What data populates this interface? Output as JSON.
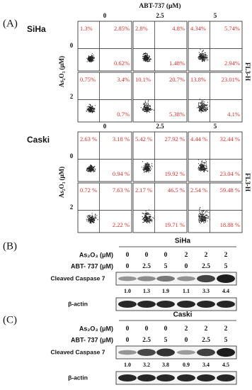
{
  "panel_a": {
    "label": "(A)",
    "header": "ABT-737 (μM)",
    "y_label": "As₂O₃ (μM)",
    "side_label": "FL3-H",
    "blocks": [
      {
        "name": "SiHa",
        "columns": [
          "0",
          "2.5",
          "5"
        ],
        "rows": [
          {
            "label": "0",
            "cells": [
              [
                "1.3%",
                "2.85%",
                "0.62%"
              ],
              [
                "2.8%",
                "4.8%",
                "1.48%"
              ],
              [
                "4.34%",
                "5.74%",
                "2.94%"
              ]
            ]
          },
          {
            "label": "2",
            "cells": [
              [
                "0.75%",
                "3.4%",
                "0.7%"
              ],
              [
                "10.1%",
                "20.7%",
                "5.38%"
              ],
              [
                "13.8%",
                "23.01%",
                "4.1%"
              ]
            ]
          }
        ]
      },
      {
        "name": "Caski",
        "columns": [
          "0",
          "2.5",
          "5"
        ],
        "rows": [
          {
            "label": "0",
            "cells": [
              [
                "2.63 %",
                "3.18 %",
                "0.94 %"
              ],
              [
                "5.42 %",
                "27.92 %",
                "19.92 %"
              ],
              [
                "4.44 %",
                "32.44 %",
                "23.04 %"
              ]
            ]
          },
          {
            "label": "2",
            "cells": [
              [
                "0.72 %",
                "7.63 %",
                "2.22 %"
              ],
              [
                "2.17 %",
                "46.5 %",
                "19.71 %"
              ],
              [
                "2.54 %",
                "59.48 %",
                "18.88 %"
              ]
            ]
          }
        ]
      }
    ]
  },
  "blots": [
    {
      "label": "(B)",
      "cell_line": "SiHa",
      "treatments": [
        {
          "label": "As₂O₃ (μM)",
          "values": [
            "0",
            "0",
            "0",
            "2",
            "2",
            "2"
          ]
        },
        {
          "label": "ABT- 737 (μM)",
          "values": [
            "0",
            "2.5",
            "5",
            "0",
            "2.5",
            "5"
          ]
        }
      ],
      "bands": [
        "Cleaved Caspase 7",
        "β-actin"
      ],
      "quantification": [
        "1.0",
        "1.3",
        "1.9",
        "1.1",
        "3.3",
        "4.4"
      ]
    },
    {
      "label": "(C)",
      "cell_line": "Caski",
      "treatments": [
        {
          "label": "As₂O₃ (μM)",
          "values": [
            "0",
            "0",
            "0",
            "2",
            "2",
            "2"
          ]
        },
        {
          "label": "ABT- 737 (μM)",
          "values": [
            "0",
            "2.5",
            "5",
            "0",
            "2.5",
            "5"
          ]
        }
      ],
      "bands": [
        "Cleaved Caspase 7",
        "β-actin"
      ],
      "quantification": [
        "1.0",
        "3.2",
        "3.8",
        "0.9",
        "3.4",
        "4.5"
      ]
    }
  ]
}
